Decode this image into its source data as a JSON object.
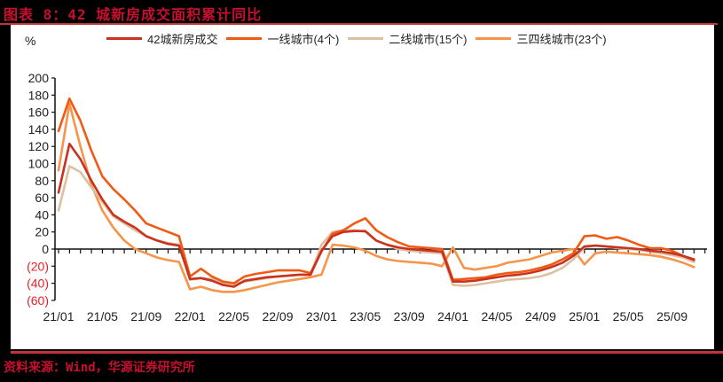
{
  "title": "图表 8：42 城新房成交面积累计同比",
  "source": "资料来源：Wind，华源证券研究所",
  "chart_data": {
    "type": "line",
    "title": "42城新房成交面积累计同比",
    "ylabel": "%",
    "xlabel": "",
    "ylim": [
      -60,
      200
    ],
    "yticks": [
      200,
      180,
      160,
      140,
      120,
      100,
      80,
      60,
      40,
      20,
      0,
      -20,
      -40,
      -60
    ],
    "ytick_labels": [
      "200",
      "180",
      "160",
      "140",
      "120",
      "100",
      "80",
      "60",
      "40",
      "20",
      "0",
      "(20)",
      "(40)",
      "(60)"
    ],
    "negative_label_color": "#e8202a",
    "xtick_labels": [
      "21/01",
      "21/05",
      "21/09",
      "22/01",
      "22/05",
      "22/09",
      "23/01",
      "23/05",
      "23/09",
      "24/01",
      "24/05",
      "24/09",
      "25/01",
      "25/05",
      "25/09"
    ],
    "grid": false,
    "legend_position": "top",
    "x": [
      "21/01",
      "21/02",
      "21/03",
      "21/04",
      "21/05",
      "21/06",
      "21/07",
      "21/08",
      "21/09",
      "21/10",
      "21/11",
      "21/12",
      "22/01",
      "22/02",
      "22/03",
      "22/04",
      "22/05",
      "22/06",
      "22/07",
      "22/08",
      "22/09",
      "22/10",
      "22/11",
      "22/12",
      "23/01",
      "23/02",
      "23/03",
      "23/04",
      "23/05",
      "23/06",
      "23/07",
      "23/08",
      "23/09",
      "23/10",
      "23/11",
      "23/12",
      "24/01",
      "24/02",
      "24/03",
      "24/04",
      "24/05",
      "24/06",
      "24/07",
      "24/08",
      "24/09",
      "24/10",
      "24/11",
      "24/12",
      "25/01",
      "25/02",
      "25/03",
      "25/04",
      "25/05",
      "25/06",
      "25/07",
      "25/08",
      "25/09",
      "25/10",
      "25/11"
    ],
    "series": [
      {
        "name": "42城新房成交",
        "color": "#c8321e",
        "values": [
          66,
          123,
          105,
          80,
          58,
          40,
          32,
          25,
          15,
          10,
          6,
          4,
          -35,
          -34,
          -37,
          -42,
          -44,
          -37,
          -35,
          -33,
          -32,
          -31,
          -30,
          -30,
          -2,
          15,
          20,
          21,
          21,
          10,
          5,
          2,
          0,
          -1,
          -2,
          -3,
          -38,
          -38,
          -37,
          -35,
          -33,
          -31,
          -30,
          -28,
          -25,
          -21,
          -16,
          -8,
          3,
          4,
          3,
          2,
          1,
          0,
          -2,
          -3,
          -5,
          -8,
          -12
        ]
      },
      {
        "name": "一线城市(4个)",
        "color": "#f05a14",
        "values": [
          138,
          176,
          150,
          115,
          85,
          70,
          58,
          45,
          30,
          25,
          20,
          15,
          -32,
          -23,
          -32,
          -38,
          -40,
          -32,
          -29,
          -27,
          -25,
          -25,
          -25,
          -28,
          -3,
          18,
          22,
          30,
          36,
          22,
          14,
          8,
          3,
          2,
          1,
          0,
          -36,
          -35,
          -34,
          -33,
          -30,
          -28,
          -27,
          -25,
          -22,
          -18,
          -12,
          -5,
          15,
          16,
          12,
          14,
          10,
          5,
          1,
          1,
          -2,
          -8,
          -13
        ]
      },
      {
        "name": "二线城市(15个)",
        "color": "#dcc0a0",
        "values": [
          45,
          97,
          90,
          72,
          55,
          38,
          30,
          22,
          15,
          10,
          7,
          5,
          -36,
          -34,
          -35,
          -40,
          -41,
          -38,
          -36,
          -34,
          -32,
          -31,
          -30,
          -30,
          5,
          20,
          22,
          22,
          20,
          10,
          5,
          0,
          -2,
          -3,
          -4,
          -5,
          -42,
          -43,
          -42,
          -40,
          -38,
          -36,
          -35,
          -34,
          -32,
          -28,
          -22,
          -12,
          2,
          4,
          3,
          1,
          0,
          -1,
          -3,
          -5,
          -7,
          -10,
          -15
        ]
      },
      {
        "name": "三四线城市(23个)",
        "color": "#f5944a",
        "values": [
          92,
          170,
          120,
          75,
          45,
          25,
          10,
          0,
          -5,
          -10,
          -13,
          -15,
          -47,
          -44,
          -48,
          -50,
          -50,
          -48,
          -45,
          -42,
          -39,
          -37,
          -35,
          -33,
          -30,
          5,
          4,
          2,
          -2,
          -8,
          -12,
          -14,
          -15,
          -16,
          -17,
          -20,
          2,
          -22,
          -24,
          -22,
          -20,
          -16,
          -14,
          -12,
          -8,
          -4,
          -2,
          0,
          -18,
          -5,
          -3,
          -4,
          -5,
          -6,
          -7,
          -9,
          -12,
          -16,
          -21
        ]
      }
    ]
  },
  "legend": [
    {
      "label": "42城新房成交",
      "color": "#c8321e"
    },
    {
      "label": "一线城市(4个)",
      "color": "#f05a14"
    },
    {
      "label": "二线城市(15个)",
      "color": "#dcc0a0"
    },
    {
      "label": "三四线城市(23个)",
      "color": "#f5944a"
    }
  ],
  "unit": "%"
}
